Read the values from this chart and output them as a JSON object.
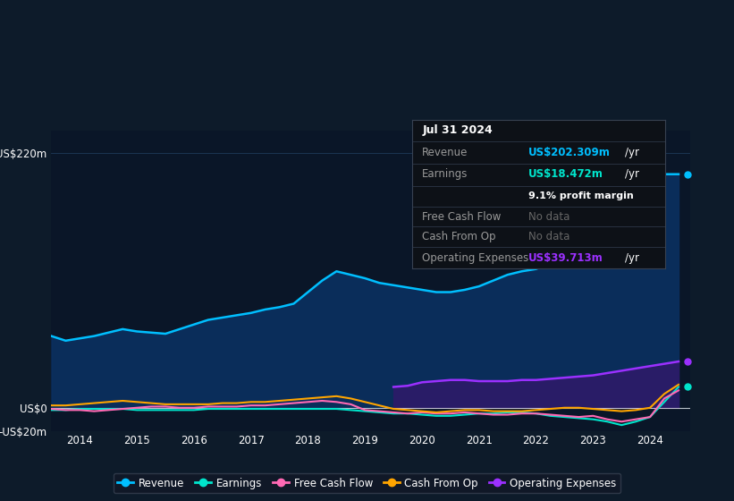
{
  "bg_color": "#0d1b2a",
  "plot_bg_color": "#0a1628",
  "ylim": [
    -20,
    240
  ],
  "yticks": [
    -20,
    0,
    220
  ],
  "ytick_labels": [
    "-US$20m",
    "US$0",
    "US$220m"
  ],
  "xlabel_ticks": [
    2014,
    2015,
    2016,
    2017,
    2018,
    2019,
    2020,
    2021,
    2022,
    2023,
    2024
  ],
  "grid_color": "#1e3a5a",
  "revenue_color": "#00bfff",
  "earnings_color": "#00e5cc",
  "fcf_color": "#ff69b4",
  "cashfromop_color": "#ffa500",
  "opex_color": "#9b30ff",
  "revenue_fill_color": "#0a3060",
  "opex_fill_color": "#2d1b69",
  "legend_bg": "#111827",
  "legend_border": "#374151",
  "revenue_data_x": [
    2013.5,
    2013.75,
    2014.0,
    2014.25,
    2014.5,
    2014.75,
    2015.0,
    2015.25,
    2015.5,
    2015.75,
    2016.0,
    2016.25,
    2016.5,
    2016.75,
    2017.0,
    2017.25,
    2017.5,
    2017.75,
    2018.0,
    2018.25,
    2018.5,
    2018.75,
    2019.0,
    2019.25,
    2019.5,
    2019.75,
    2020.0,
    2020.25,
    2020.5,
    2020.75,
    2021.0,
    2021.25,
    2021.5,
    2021.75,
    2022.0,
    2022.25,
    2022.5,
    2022.75,
    2023.0,
    2023.25,
    2023.5,
    2023.75,
    2024.0,
    2024.25,
    2024.5
  ],
  "revenue_data_y": [
    62,
    58,
    60,
    62,
    65,
    68,
    66,
    65,
    64,
    68,
    72,
    76,
    78,
    80,
    82,
    85,
    87,
    90,
    100,
    110,
    118,
    115,
    112,
    108,
    106,
    104,
    102,
    100,
    100,
    102,
    105,
    110,
    115,
    118,
    120,
    125,
    130,
    135,
    150,
    175,
    220,
    215,
    205,
    202,
    202
  ],
  "earnings_data_x": [
    2013.5,
    2013.75,
    2014.0,
    2014.25,
    2014.5,
    2014.75,
    2015.0,
    2015.25,
    2015.5,
    2015.75,
    2016.0,
    2016.25,
    2016.5,
    2016.75,
    2017.0,
    2017.25,
    2017.5,
    2017.75,
    2018.0,
    2018.25,
    2018.5,
    2018.75,
    2019.0,
    2019.25,
    2019.5,
    2019.75,
    2020.0,
    2020.25,
    2020.5,
    2020.75,
    2021.0,
    2021.25,
    2021.5,
    2021.75,
    2022.0,
    2022.25,
    2022.5,
    2022.75,
    2023.0,
    2023.25,
    2023.5,
    2023.75,
    2024.0,
    2024.25,
    2024.5
  ],
  "earnings_data_y": [
    -2,
    -2,
    -1,
    -1,
    -1,
    -1,
    -2,
    -2,
    -2,
    -2,
    -2,
    -1,
    -1,
    -1,
    -1,
    -1,
    -1,
    -1,
    -1,
    -1,
    -1,
    -2,
    -3,
    -4,
    -5,
    -5,
    -6,
    -7,
    -7,
    -6,
    -5,
    -5,
    -4,
    -4,
    -5,
    -7,
    -8,
    -9,
    -10,
    -12,
    -15,
    -12,
    -8,
    5,
    18
  ],
  "fcf_data_x": [
    2013.5,
    2013.75,
    2014.0,
    2014.25,
    2014.5,
    2014.75,
    2015.0,
    2015.25,
    2015.5,
    2015.75,
    2016.0,
    2016.25,
    2016.5,
    2016.75,
    2017.0,
    2017.25,
    2017.5,
    2017.75,
    2018.0,
    2018.25,
    2018.5,
    2018.75,
    2019.0,
    2019.25,
    2019.5,
    2019.75,
    2020.0,
    2020.25,
    2020.5,
    2020.75,
    2021.0,
    2021.25,
    2021.5,
    2021.75,
    2022.0,
    2022.25,
    2022.5,
    2022.75,
    2023.0,
    2023.25,
    2023.5,
    2023.75,
    2024.0,
    2024.25,
    2024.5
  ],
  "fcf_data_y": [
    -1,
    -2,
    -2,
    -3,
    -2,
    -1,
    0,
    1,
    1,
    0,
    0,
    1,
    1,
    1,
    2,
    2,
    3,
    4,
    5,
    6,
    5,
    3,
    -2,
    -3,
    -4,
    -5,
    -4,
    -5,
    -5,
    -4,
    -5,
    -6,
    -6,
    -5,
    -5,
    -6,
    -7,
    -8,
    -7,
    -10,
    -12,
    -10,
    -8,
    8,
    15
  ],
  "cashfromop_data_x": [
    2013.5,
    2013.75,
    2014.0,
    2014.25,
    2014.5,
    2014.75,
    2015.0,
    2015.25,
    2015.5,
    2015.75,
    2016.0,
    2016.25,
    2016.5,
    2016.75,
    2017.0,
    2017.25,
    2017.5,
    2017.75,
    2018.0,
    2018.25,
    2018.5,
    2018.75,
    2019.0,
    2019.25,
    2019.5,
    2019.75,
    2020.0,
    2020.25,
    2020.5,
    2020.75,
    2021.0,
    2021.25,
    2021.5,
    2021.75,
    2022.0,
    2022.25,
    2022.5,
    2022.75,
    2023.0,
    2023.25,
    2023.5,
    2023.75,
    2024.0,
    2024.25,
    2024.5
  ],
  "cashfromop_data_y": [
    2,
    2,
    3,
    4,
    5,
    6,
    5,
    4,
    3,
    3,
    3,
    3,
    4,
    4,
    5,
    5,
    6,
    7,
    8,
    9,
    10,
    8,
    5,
    2,
    -1,
    -2,
    -3,
    -4,
    -3,
    -2,
    -2,
    -3,
    -3,
    -3,
    -2,
    -1,
    0,
    0,
    -1,
    -2,
    -3,
    -2,
    0,
    12,
    20
  ],
  "opex_data_x": [
    2019.5,
    2019.75,
    2020.0,
    2020.25,
    2020.5,
    2020.75,
    2021.0,
    2021.25,
    2021.5,
    2021.75,
    2022.0,
    2022.25,
    2022.5,
    2022.75,
    2023.0,
    2023.25,
    2023.5,
    2023.75,
    2024.0,
    2024.25,
    2024.5
  ],
  "opex_data_y": [
    18,
    19,
    22,
    23,
    24,
    24,
    23,
    23,
    23,
    24,
    24,
    25,
    26,
    27,
    28,
    30,
    32,
    34,
    36,
    38,
    40
  ],
  "infobox": {
    "date": "Jul 31 2024",
    "revenue_label": "Revenue",
    "revenue_value": "US$202.309m",
    "revenue_unit": "/yr",
    "earnings_label": "Earnings",
    "earnings_value": "US$18.472m",
    "earnings_unit": "/yr",
    "margin_text": "9.1% profit margin",
    "fcf_label": "Free Cash Flow",
    "fcf_value": "No data",
    "cashfromop_label": "Cash From Op",
    "cashfromop_value": "No data",
    "opex_label": "Operating Expenses",
    "opex_value": "US$39.713m",
    "opex_unit": "/yr"
  },
  "legend_items": [
    {
      "label": "Revenue",
      "color": "#00bfff"
    },
    {
      "label": "Earnings",
      "color": "#00e5cc"
    },
    {
      "label": "Free Cash Flow",
      "color": "#ff69b4"
    },
    {
      "label": "Cash From Op",
      "color": "#ffa500"
    },
    {
      "label": "Operating Expenses",
      "color": "#9b30ff"
    }
  ],
  "right_dots": [
    {
      "y": 202,
      "color": "#00bfff"
    },
    {
      "y": 40,
      "color": "#9b30ff"
    },
    {
      "y": 18,
      "color": "#00e5cc"
    }
  ]
}
